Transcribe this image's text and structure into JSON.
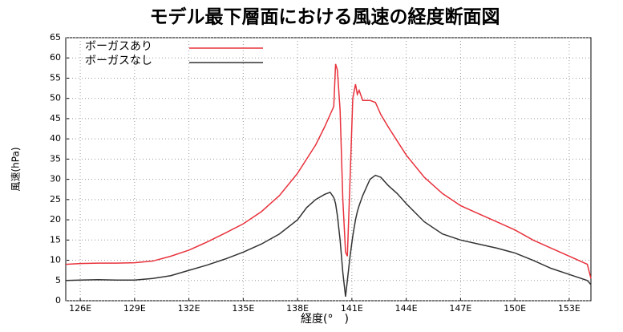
{
  "chart_data": {
    "type": "line",
    "title": "モデル最下層面における風速の経度断面図",
    "xlabel": "経度(°　)",
    "ylabel": "風速(hPa)",
    "x": [
      125.2,
      126,
      127,
      128,
      129,
      130,
      131,
      132,
      133,
      134,
      135,
      136,
      137,
      138,
      138.5,
      139,
      139.5,
      139.8,
      140,
      140.1,
      140.2,
      140.35,
      140.5,
      140.65,
      140.75,
      140.9,
      141.05,
      141.2,
      141.3,
      141.4,
      141.6,
      142,
      142.3,
      142.6,
      143,
      143.5,
      144,
      145,
      146,
      147,
      148,
      149,
      150,
      151,
      152,
      153,
      154,
      154.2
    ],
    "series": [
      {
        "name": "ボーガスあり",
        "color": "#e8323c",
        "values": [
          9,
          9.2,
          9.3,
          9.3,
          9.4,
          9.8,
          11,
          12.5,
          14.5,
          16.7,
          19,
          22,
          26,
          31.5,
          35,
          38.5,
          43,
          46,
          48,
          58.5,
          57,
          47,
          25,
          12,
          11,
          30,
          50,
          53.5,
          51,
          52,
          49.5,
          49.5,
          49,
          46,
          43,
          39.5,
          36,
          30.5,
          26.5,
          23.5,
          21.5,
          19.5,
          17.5,
          15,
          13,
          11,
          9,
          5.5
        ]
      },
      {
        "name": "ボーガスなし",
        "color": "#333333",
        "values": [
          5,
          5.1,
          5.2,
          5.1,
          5.1,
          5.5,
          6.2,
          7.5,
          8.8,
          10.3,
          12,
          14,
          16.5,
          20,
          23,
          25,
          26.3,
          26.8,
          25.5,
          24,
          21,
          15,
          7,
          1,
          5,
          11,
          16,
          20,
          22,
          23.5,
          26,
          30,
          31,
          30.5,
          28.5,
          26.5,
          24,
          19.5,
          16.5,
          15,
          14,
          13,
          11.8,
          10,
          8,
          6.5,
          5,
          4
        ]
      }
    ],
    "xlim": [
      125.2,
      154.2
    ],
    "xticks": [
      {
        "value": 126,
        "label": "126E"
      },
      {
        "value": 129,
        "label": "129E"
      },
      {
        "value": 132,
        "label": "132E"
      },
      {
        "value": 135,
        "label": "135E"
      },
      {
        "value": 138,
        "label": "138E"
      },
      {
        "value": 141,
        "label": "141E"
      },
      {
        "value": 144,
        "label": "144E"
      },
      {
        "value": 147,
        "label": "147E"
      },
      {
        "value": 150,
        "label": "150E"
      },
      {
        "value": 153,
        "label": "153E"
      }
    ],
    "ylim": [
      0,
      65
    ],
    "yticks": [
      0,
      5,
      10,
      15,
      20,
      25,
      30,
      35,
      40,
      45,
      50,
      55,
      60,
      65
    ],
    "grid": true,
    "legend": "upper left"
  }
}
